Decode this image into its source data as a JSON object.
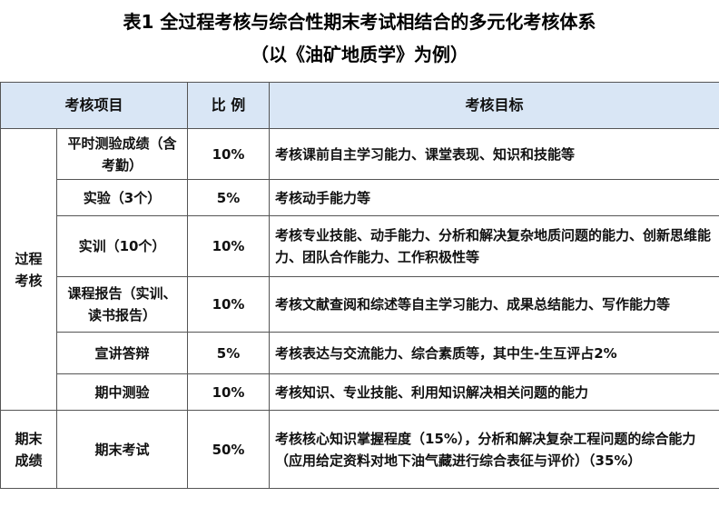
{
  "title_line1": "表1 全过程考核与综合性期末考试相结合的多元化考核体系",
  "title_line2": "（以《油矿地质学》为例）",
  "header": {
    "item": "考核项目",
    "ratio": "比 例",
    "goal": "考核目标"
  },
  "groups": {
    "process": "过程考核",
    "final": "期末成绩"
  },
  "rows": [
    {
      "item": "平时测验成绩（含考勤）",
      "ratio": "10%",
      "goal": "考核课前自主学习能力、课堂表现、知识和技能等"
    },
    {
      "item": "实验（3个）",
      "ratio": "5%",
      "goal": "考核动手能力等"
    },
    {
      "item": "实训（10个）",
      "ratio": "10%",
      "goal": "考核专业技能、动手能力、分析和解决复杂地质问题的能力、创新思维能力、团队合作能力、工作积极性等"
    },
    {
      "item": "课程报告（实训、读书报告）",
      "ratio": "10%",
      "goal": "考核文献查阅和综述等自主学习能力、成果总结能力、写作能力等"
    },
    {
      "item": "宣讲答辩",
      "ratio": "5%",
      "goal": "考核表达与交流能力、综合素质等，其中生-生互评占2%"
    },
    {
      "item": "期中测验",
      "ratio": "10%",
      "goal": "考核知识、专业技能、利用知识解决相关问题的能力"
    },
    {
      "item": "期末考试",
      "ratio": "50%",
      "goal": "考核核心知识掌握程度（15%），分析和解决复杂工程问题的综合能力（应用给定资料对地下油气藏进行综合表征与评价）（35%）"
    }
  ]
}
